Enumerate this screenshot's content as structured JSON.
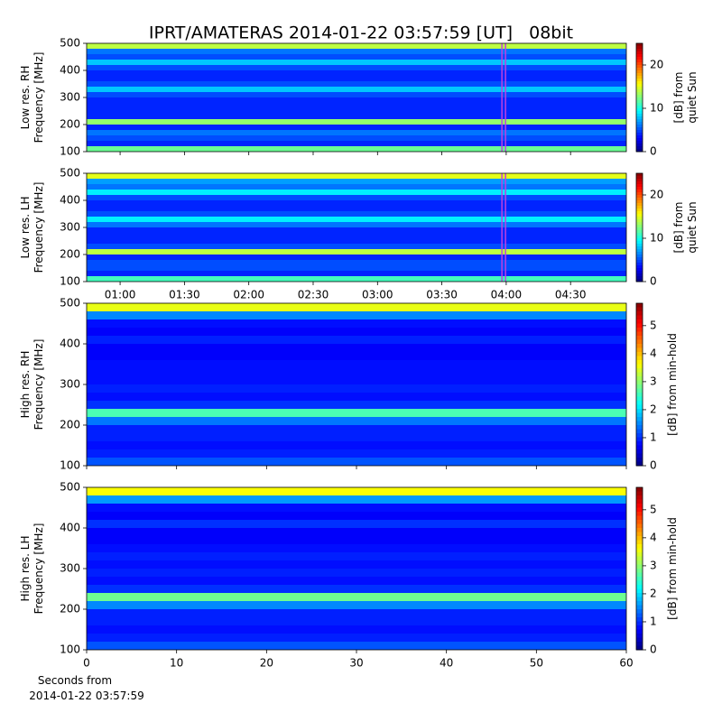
{
  "chart_data": [
    {
      "type": "heatmap",
      "title": "IPRT/AMATERAS 2014-01-22 03:57:59 [UT]   08bit",
      "ylabel": [
        "Low res. RH",
        "Frequency [MHz]"
      ],
      "ylim": [
        100,
        500
      ],
      "yticks": [
        100,
        200,
        300,
        400,
        500
      ],
      "freq_bins": [
        100,
        120,
        140,
        160,
        180,
        200,
        220,
        240,
        260,
        280,
        300,
        320,
        340,
        360,
        380,
        400,
        420,
        440,
        460,
        480,
        500
      ],
      "values": [
        12,
        4,
        5,
        6,
        4,
        13,
        4,
        4,
        4,
        4,
        5,
        8,
        5,
        4,
        4,
        5,
        8,
        5,
        6,
        14
      ],
      "colormap": "jet",
      "clim": [
        0,
        25
      ],
      "cticks": [
        0,
        10,
        20
      ],
      "clabel": [
        "[dB] from",
        "quiet Sun"
      ],
      "marker_x": 238,
      "marker_color": "#c040e0"
    },
    {
      "type": "heatmap",
      "ylabel": [
        "Low res. LH",
        "Frequency [MHz]"
      ],
      "ylim": [
        100,
        500
      ],
      "yticks": [
        100,
        200,
        300,
        400,
        500
      ],
      "xlim": [
        44.4,
        296
      ],
      "xticks": [
        {
          "value": 60,
          "label": "01:00"
        },
        {
          "value": 90,
          "label": "01:30"
        },
        {
          "value": 120,
          "label": "02:00"
        },
        {
          "value": 150,
          "label": "02:30"
        },
        {
          "value": 180,
          "label": "03:00"
        },
        {
          "value": 210,
          "label": "03:30"
        },
        {
          "value": 240,
          "label": "04:00"
        },
        {
          "value": 270,
          "label": "04:30"
        }
      ],
      "freq_bins": [
        100,
        120,
        140,
        160,
        180,
        200,
        220,
        240,
        260,
        280,
        300,
        320,
        340,
        360,
        380,
        400,
        420,
        440,
        460,
        480,
        500
      ],
      "values": [
        11,
        4,
        5,
        5,
        4,
        14,
        5,
        4,
        4,
        4,
        6,
        9,
        5,
        4,
        4,
        5,
        9,
        6,
        7,
        15
      ],
      "colormap": "jet",
      "clim": [
        0,
        25
      ],
      "cticks": [
        0,
        10,
        20
      ],
      "clabel": [
        "[dB] from",
        "quiet Sun"
      ],
      "marker_x": 238,
      "marker_color": "#c040e0"
    },
    {
      "type": "heatmap",
      "ylabel": [
        "High res. RH",
        "Frequency [MHz]"
      ],
      "ylim": [
        100,
        500
      ],
      "yticks": [
        100,
        200,
        300,
        400,
        500
      ],
      "freq_bins": [
        100,
        120,
        140,
        160,
        180,
        200,
        220,
        240,
        260,
        280,
        300,
        320,
        340,
        360,
        380,
        400,
        420,
        440,
        460,
        480,
        500
      ],
      "values": [
        1.2,
        0.9,
        0.8,
        0.9,
        0.9,
        1.4,
        2.6,
        1,
        0.8,
        0.9,
        0.8,
        0.8,
        0.8,
        0.7,
        0.7,
        0.9,
        0.7,
        0.8,
        1.5,
        3.5
      ],
      "colormap": "jet",
      "clim": [
        0,
        5.8
      ],
      "cticks": [
        0,
        1,
        2,
        3,
        4,
        5
      ],
      "clabel": [
        "[dB] from min-hold"
      ]
    },
    {
      "type": "heatmap",
      "ylabel": [
        "High res. LH",
        "Frequency [MHz]"
      ],
      "ylim": [
        100,
        500
      ],
      "yticks": [
        100,
        200,
        300,
        400,
        500
      ],
      "xlim": [
        0,
        60
      ],
      "xticks": [
        0,
        10,
        20,
        30,
        40,
        50,
        60
      ],
      "xlabel": [
        "Seconds from",
        "2014-01-22 03:57:59"
      ],
      "freq_bins": [
        100,
        120,
        140,
        160,
        180,
        200,
        220,
        240,
        260,
        280,
        300,
        320,
        340,
        360,
        380,
        400,
        420,
        440,
        460,
        480,
        500
      ],
      "values": [
        1.2,
        0.9,
        0.8,
        0.9,
        0.9,
        1.5,
        2.8,
        1,
        0.8,
        0.9,
        0.8,
        0.9,
        0.8,
        0.7,
        0.7,
        1,
        0.7,
        0.8,
        1.6,
        3.6
      ],
      "colormap": "jet",
      "clim": [
        0,
        5.8
      ],
      "cticks": [
        0,
        1,
        2,
        3,
        4,
        5
      ],
      "clabel": [
        "[dB] from min-hold"
      ]
    }
  ]
}
